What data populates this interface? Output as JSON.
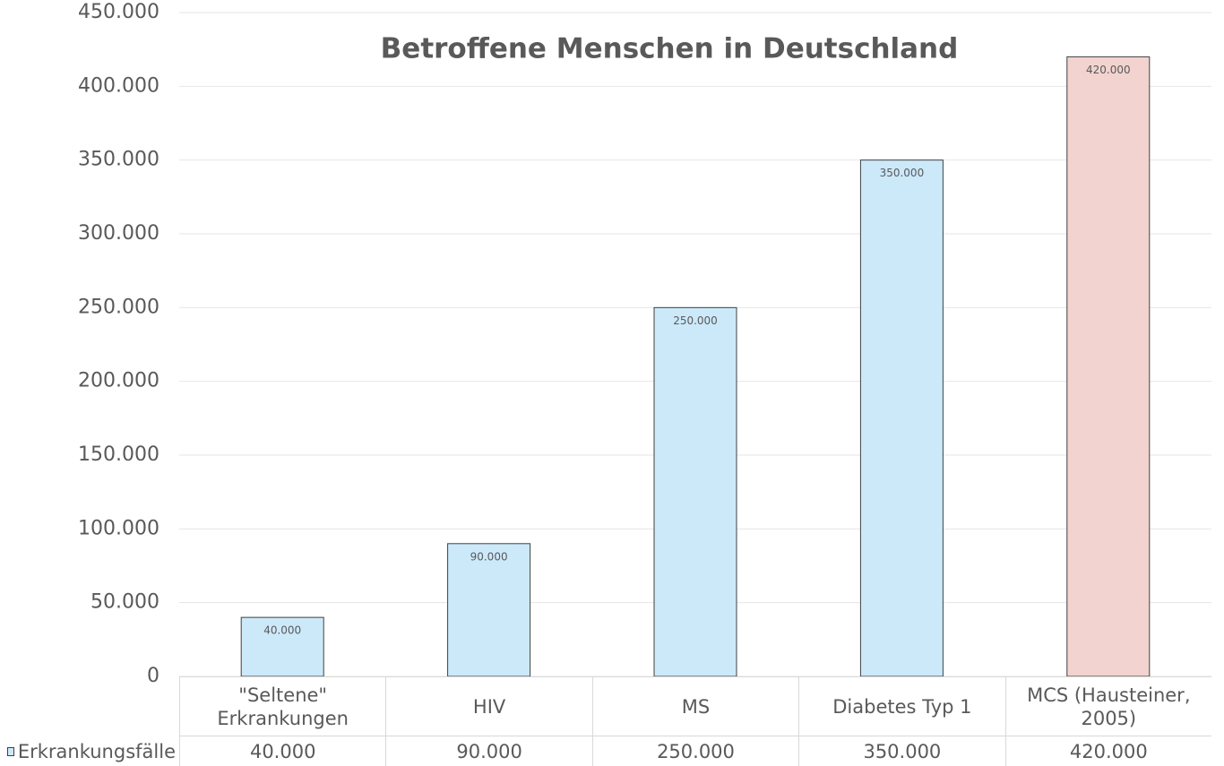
{
  "chart_data": {
    "type": "bar",
    "title": "Betroffene Menschen in Deutschland",
    "categories": [
      "\"Seltene\" Erkrankungen",
      "HIV",
      "MS",
      "Diabetes Typ 1",
      "MCS (Hausteiner, 2005)"
    ],
    "series": [
      {
        "name": "Erkrankungsfälle",
        "color": "#cce9fa",
        "colors": [
          "#cce9fa",
          "#cce9fa",
          "#cce9fa",
          "#cce9fa",
          "#f2d3cf"
        ],
        "values": [
          40000,
          90000,
          250000,
          350000,
          420000
        ],
        "value_labels": [
          "40.000",
          "90.000",
          "250.000",
          "350.000",
          "420.000"
        ]
      }
    ],
    "ylim": [
      0,
      450000
    ],
    "yticks": [
      {
        "value": 0,
        "label": "0"
      },
      {
        "value": 50000,
        "label": "50.000"
      },
      {
        "value": 100000,
        "label": "100.000"
      },
      {
        "value": 150000,
        "label": "150.000"
      },
      {
        "value": 200000,
        "label": "200.000"
      },
      {
        "value": 250000,
        "label": "250.000"
      },
      {
        "value": 300000,
        "label": "300.000"
      },
      {
        "value": 350000,
        "label": "350.000"
      },
      {
        "value": 400000,
        "label": "400.000"
      },
      {
        "value": 450000,
        "label": "450.000"
      }
    ],
    "grid": true
  }
}
